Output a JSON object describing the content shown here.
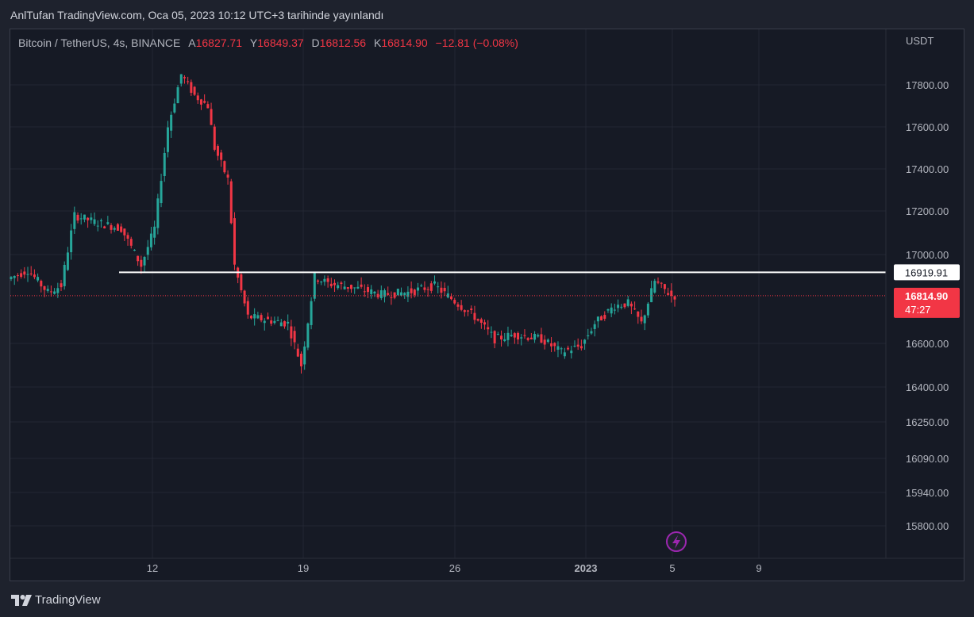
{
  "header": {
    "published_text": "AnlTufan TradingView.com, Oca 05, 2023 10:12 UTC+3 tarihinde yayınlandı"
  },
  "legend": {
    "symbol": "Bitcoin / TetherUS, 4s, BINANCE",
    "open_label": "A",
    "open": "16827.71",
    "high_label": "Y",
    "high": "16849.37",
    "low_label": "D",
    "low": "16812.56",
    "close_label": "K",
    "close": "16814.90",
    "change": "−12.81 (−0.08%)"
  },
  "footer": {
    "brand": "TradingView"
  },
  "colors": {
    "up": "#26a69a",
    "down": "#f23645",
    "background": "#161a25",
    "grid": "#232734",
    "level_line": "#ffffff",
    "accent_icon": "#9c27b0"
  },
  "chart_data": {
    "type": "candlestick",
    "currency_label": "USDT",
    "y_ticks": [
      17800,
      17600,
      17400,
      17200,
      17000,
      16600,
      16400,
      16250,
      16090,
      15940,
      15800
    ],
    "y_tick_labels": [
      "17800.00",
      "17600.00",
      "17400.00",
      "17200.00",
      "17000.00",
      "16600.00",
      "16400.00",
      "16250.00",
      "16090.00",
      "15940.00",
      "15800.00"
    ],
    "x_tick_labels": [
      "12",
      "19",
      "26",
      "2023",
      "5",
      "9"
    ],
    "horizontal_level": {
      "value": 16919.91,
      "label": "16919.91"
    },
    "last_price": {
      "value": 16814.9,
      "label": "16814.90",
      "countdown": "47:27"
    },
    "grid": true,
    "legend_position": "top-left",
    "description": "Price rises from about 16900 to about 17850 around Dec 14, falls back to about 16700 by Dec 19, ranges between 16500 and 16950 through late December, and recovers to about 16820 on Jan 5."
  }
}
